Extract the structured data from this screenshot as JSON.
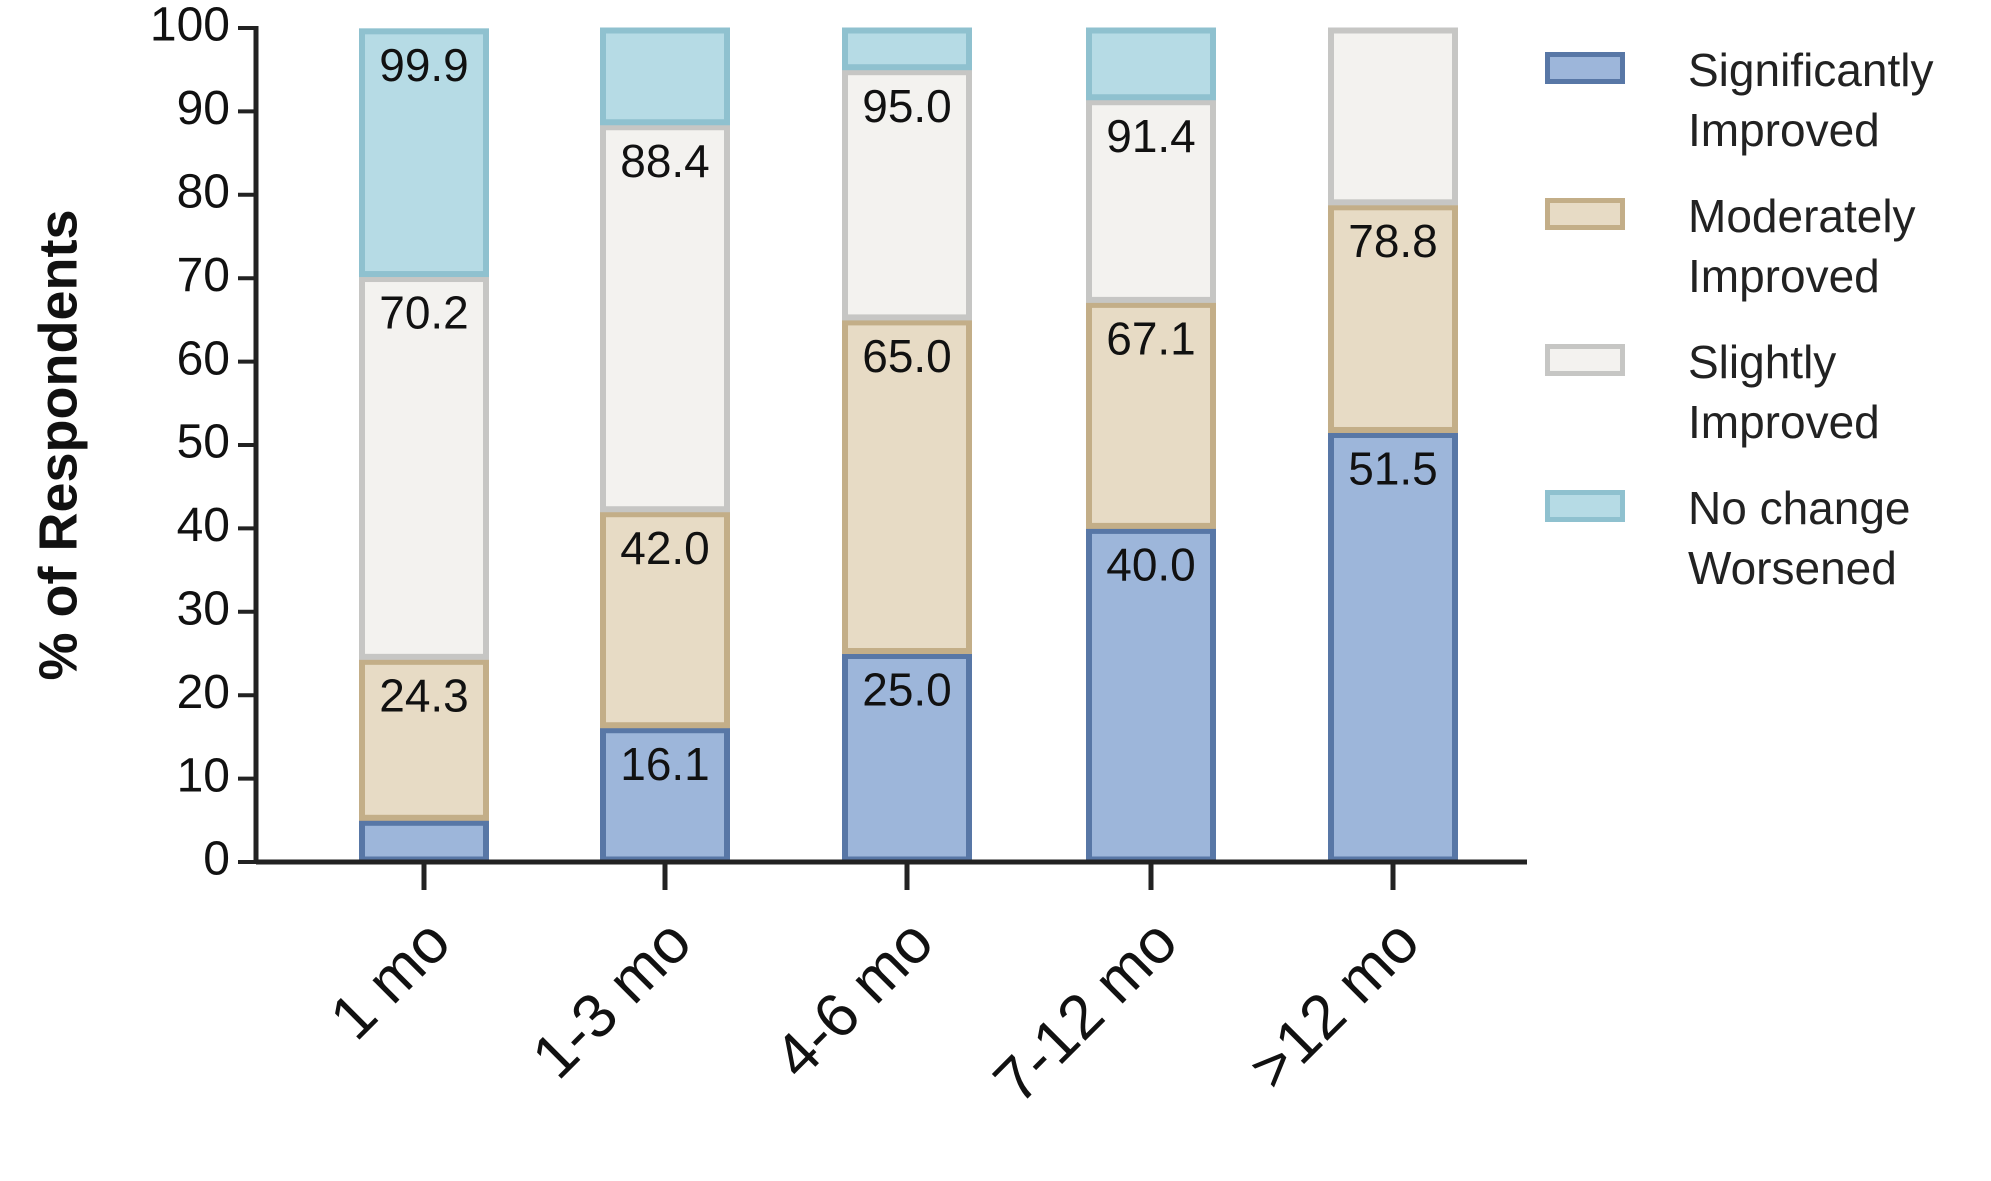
{
  "chart_data": {
    "type": "stacked_bar",
    "ylabel": "% of Respondents",
    "categories": [
      "1 mo",
      "1-3 mo",
      "4-6 mo",
      "7-12 mo",
      ">12 mo"
    ],
    "series": [
      {
        "name": "Significantly Improved",
        "color": "#9db6da",
        "edgecolor": "#5877a6",
        "values": [
          5.0,
          16.1,
          25.0,
          40.0,
          51.5
        ],
        "labels": [
          null,
          "16.1",
          "25.0",
          "40.0",
          "51.5"
        ]
      },
      {
        "name": "Moderately Improved",
        "color": "#e7dbc5",
        "edgecolor": "#c3ae88",
        "values": [
          19.3,
          25.9,
          40.0,
          27.1,
          27.3
        ],
        "labels": [
          "24.3",
          "42.0",
          "65.0",
          "67.1",
          "78.8"
        ]
      },
      {
        "name": "Slightly Improved",
        "color": "#f3f2ef",
        "edgecolor": "#c6c6c4",
        "values": [
          45.9,
          46.4,
          30.0,
          24.3,
          21.2
        ],
        "labels": [
          "70.2",
          "88.4",
          "95.0",
          "91.4",
          null
        ]
      },
      {
        "name": "No change Worsened",
        "color": "#b6dbe5",
        "edgecolor": "#8fc1cf",
        "values": [
          29.7,
          11.6,
          5.0,
          8.6,
          0
        ],
        "labels": [
          "99.9",
          null,
          null,
          null,
          null
        ]
      }
    ],
    "ylim": [
      0,
      100
    ],
    "yticks": [
      0,
      10,
      20,
      30,
      40,
      50,
      60,
      70,
      80,
      90,
      100
    ]
  }
}
